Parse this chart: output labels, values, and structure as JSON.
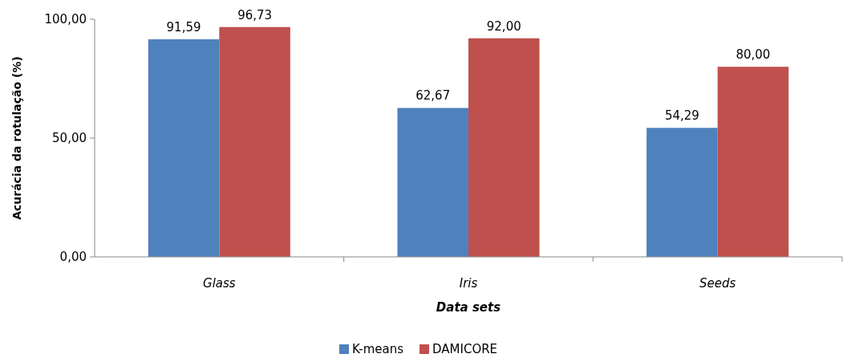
{
  "chart_data": {
    "type": "bar",
    "xlabel": "Data sets",
    "ylabel": "Acurácia da rotulação  (%)",
    "categories": [
      "Glass",
      "Iris",
      "Seeds"
    ],
    "series": [
      {
        "name": "K-means",
        "color": "#4f81bd",
        "values": [
          91.59,
          62.67,
          54.29
        ],
        "value_labels": [
          "91,59",
          "62,67",
          "54,29"
        ]
      },
      {
        "name": "DAMICORE",
        "color": "#c0504d",
        "values": [
          96.73,
          92.0,
          80.0
        ],
        "value_labels": [
          "96,73",
          "92,00",
          "80,00"
        ]
      }
    ],
    "ylim": [
      0,
      100
    ],
    "yticks": [
      {
        "value": 0,
        "label": "0,00"
      },
      {
        "value": 50,
        "label": "50,00"
      },
      {
        "value": 100,
        "label": "100,00"
      }
    ],
    "grid": false,
    "legend": "bottom"
  }
}
